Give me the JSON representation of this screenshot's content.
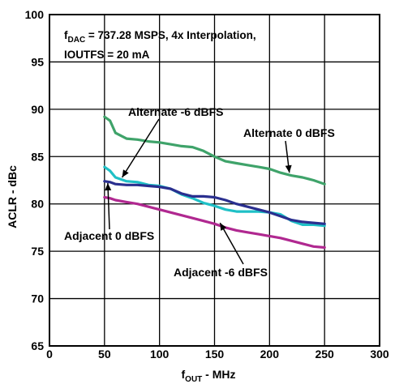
{
  "chart_data": {
    "type": "line",
    "x_title": {
      "main": "f",
      "sub": "OUT",
      "rest": " - MHz"
    },
    "ylabel": "ACLR - dBc",
    "xlim": [
      0,
      300
    ],
    "ylim": [
      65,
      100
    ],
    "x_ticks": [
      0,
      50,
      100,
      150,
      200,
      250,
      300
    ],
    "y_ticks": [
      65,
      70,
      75,
      80,
      85,
      90,
      95,
      100
    ],
    "grid": true,
    "conditions": {
      "line1_main": "f",
      "line1_sub": "DAC",
      "line1_rest": " = 737.28 MSPS, 4x Interpolation,",
      "line2": "IOUTFS = 20 mA"
    },
    "series": [
      {
        "name": "Alternate 0 dBFS",
        "color": "#3fa36a",
        "x": [
          50,
          55,
          60,
          70,
          80,
          90,
          100,
          110,
          120,
          130,
          140,
          150,
          160,
          170,
          180,
          190,
          200,
          210,
          220,
          230,
          240,
          250
        ],
        "y": [
          89.2,
          88.8,
          87.5,
          86.9,
          86.8,
          86.6,
          86.5,
          86.3,
          86.1,
          86.0,
          85.6,
          85.0,
          84.5,
          84.3,
          84.1,
          83.9,
          83.7,
          83.3,
          83.0,
          82.8,
          82.5,
          82.1
        ]
      },
      {
        "name": "Alternate -6 dBFS",
        "color": "#1fc0c6",
        "x": [
          50,
          55,
          60,
          70,
          80,
          90,
          100,
          110,
          120,
          130,
          140,
          150,
          160,
          170,
          180,
          190,
          200,
          210,
          220,
          230,
          240,
          250
        ],
        "y": [
          83.9,
          83.5,
          82.8,
          82.4,
          82.3,
          82.0,
          81.9,
          81.6,
          81.0,
          80.6,
          80.1,
          79.8,
          79.4,
          79.2,
          79.2,
          79.2,
          79.1,
          78.9,
          78.2,
          77.8,
          77.8,
          77.7
        ]
      },
      {
        "name": "Adjacent 0 dBFS",
        "color": "#2a2f8f",
        "x": [
          50,
          55,
          60,
          70,
          80,
          90,
          100,
          110,
          120,
          130,
          140,
          150,
          160,
          170,
          180,
          190,
          200,
          210,
          220,
          230,
          240,
          250
        ],
        "y": [
          82.4,
          82.3,
          82.1,
          82.0,
          82.0,
          81.9,
          81.8,
          81.6,
          81.1,
          80.8,
          80.8,
          80.7,
          80.4,
          80.0,
          79.7,
          79.4,
          79.1,
          78.7,
          78.3,
          78.1,
          78.0,
          77.9
        ]
      },
      {
        "name": "Adjacent -6 dBFS",
        "color": "#b02890",
        "x": [
          50,
          55,
          60,
          70,
          80,
          90,
          100,
          110,
          120,
          130,
          140,
          150,
          160,
          170,
          180,
          190,
          200,
          210,
          220,
          230,
          240,
          250
        ],
        "y": [
          80.7,
          80.6,
          80.4,
          80.2,
          80.0,
          79.7,
          79.4,
          79.1,
          78.8,
          78.5,
          78.2,
          77.9,
          77.5,
          77.2,
          77.0,
          76.8,
          76.6,
          76.4,
          76.1,
          75.8,
          75.5,
          75.4
        ]
      }
    ],
    "annotations": [
      {
        "text": "Alternate -6 dBFS",
        "points_to": [
          66,
          82.8
        ]
      },
      {
        "text": "Alternate 0 dBFS",
        "points_to": [
          218,
          83.3
        ]
      },
      {
        "text": "Adjacent 0 dBFS",
        "points_to": [
          53,
          82.2
        ]
      },
      {
        "text": "Adjacent -6 dBFS",
        "points_to": [
          155,
          78.0
        ]
      }
    ]
  }
}
